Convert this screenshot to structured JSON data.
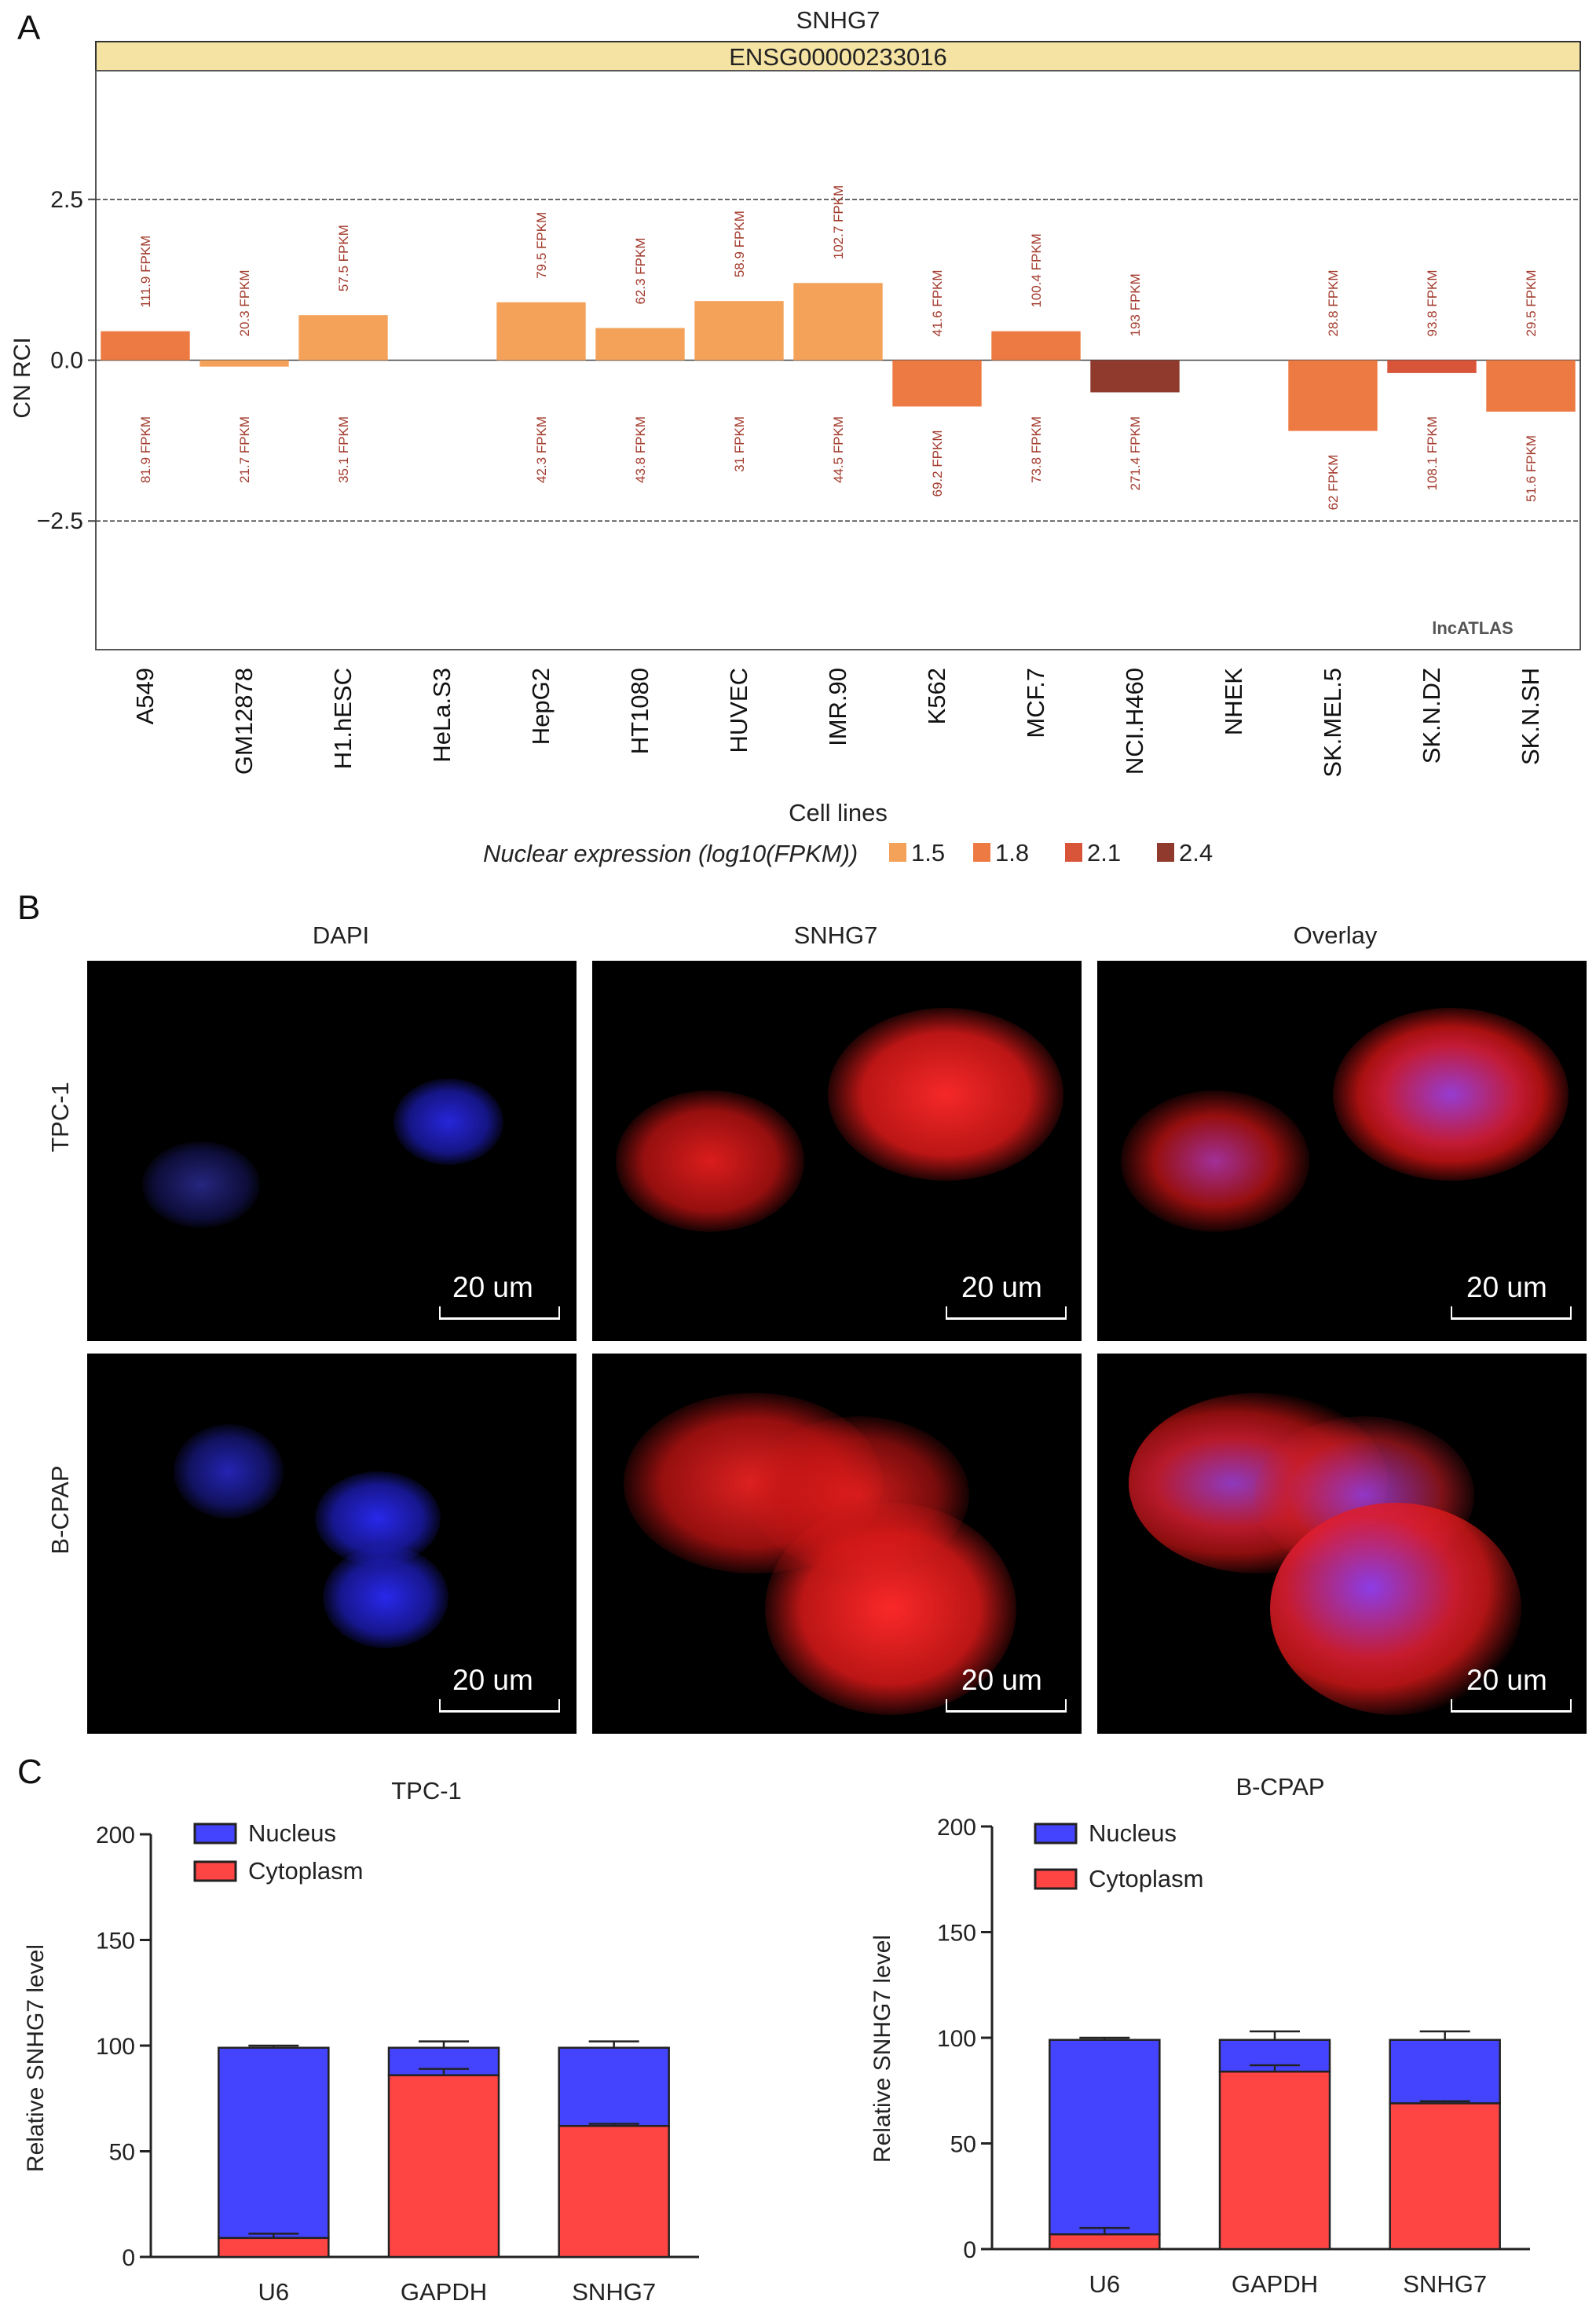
{
  "panels": {
    "a": "A",
    "b": "B",
    "c": "C"
  },
  "chart_data": [
    {
      "type": "bar",
      "title": "SNHG7",
      "subtitle": "ENSG00000233016",
      "xlabel": "Cell lines",
      "ylabel": "CN RCI",
      "watermark": "lncATLAS",
      "ylim": [
        -4.5,
        4.5
      ],
      "yticks": [
        2.5,
        0.0,
        -2.5
      ],
      "ytick_labels": [
        "2.5",
        "0.0",
        "−2.5"
      ],
      "categories": [
        "A549",
        "GM12878",
        "H1.hESC",
        "HeLa.S3",
        "HepG2",
        "HT1080",
        "HUVEC",
        "IMR.90",
        "K562",
        "MCF.7",
        "NCI.H460",
        "NHEK",
        "SK.MEL.5",
        "SK.N.DZ",
        "SK.N.SH"
      ],
      "values": [
        0.45,
        -0.1,
        0.7,
        null,
        0.9,
        0.5,
        0.92,
        1.2,
        -0.72,
        0.45,
        -0.5,
        null,
        -1.1,
        -0.2,
        -0.8
      ],
      "nuclear_log10_fpkm": [
        1.9,
        1.35,
        1.55,
        null,
        1.63,
        1.64,
        1.5,
        1.65,
        1.84,
        1.87,
        2.43,
        null,
        1.79,
        2.03,
        1.71
      ],
      "cytoplasm_labels": [
        "111.9 FPKM",
        "20.3 FPKM",
        "57.5 FPKM",
        "",
        "79.5 FPKM",
        "62.3 FPKM",
        "58.9 FPKM",
        "102.7 FPKM",
        "41.6 FPKM",
        "100.4 FPKM",
        "193 FPKM",
        "",
        "28.8 FPKM",
        "93.8 FPKM",
        "29.5 FPKM"
      ],
      "nucleus_labels": [
        "81.9 FPKM",
        "21.7 FPKM",
        "35.1 FPKM",
        "",
        "42.3 FPKM",
        "43.8 FPKM",
        "31 FPKM",
        "44.5 FPKM",
        "69.2 FPKM",
        "73.8 FPKM",
        "271.4 FPKM",
        "",
        "62 FPKM",
        "108.1 FPKM",
        "51.6 FPKM"
      ],
      "legend": {
        "title": "Nuclear expression (log10(FPKM))",
        "entries": [
          {
            "label": "1.5",
            "value": 1.5,
            "color": "#f4a25a"
          },
          {
            "label": "1.8",
            "value": 1.8,
            "color": "#ec7a42"
          },
          {
            "label": "2.1",
            "value": 2.1,
            "color": "#d9553a"
          },
          {
            "label": "2.4",
            "value": 2.4,
            "color": "#8f3a2c"
          }
        ],
        "placement": "bottom"
      },
      "grid": "dashed lines at y ticks",
      "header_color": "#f5e3a4"
    },
    {
      "type": "bar",
      "stacked": true,
      "title": "TPC-1",
      "ylabel": "Relative SNHG7 level",
      "ylim": [
        0,
        200
      ],
      "yticks": [
        0,
        50,
        100,
        150,
        200
      ],
      "categories": [
        "U6",
        "GAPDH",
        "SNHG7"
      ],
      "series": [
        {
          "name": "Cytoplasm",
          "values": [
            9,
            86,
            62
          ],
          "color": "#ff4444"
        },
        {
          "name": "Nucleus",
          "values": [
            90,
            13,
            37
          ],
          "color": "#4444ff"
        }
      ],
      "error_tops": [
        [
          11,
          89,
          63
        ],
        [
          100,
          102,
          102
        ]
      ],
      "legend_placement": "top-left"
    },
    {
      "type": "bar",
      "stacked": true,
      "title": "B-CPAP",
      "ylabel": "Relative SNHG7 level",
      "ylim": [
        0,
        200
      ],
      "yticks": [
        0,
        50,
        100,
        150,
        200
      ],
      "categories": [
        "U6",
        "GAPDH",
        "SNHG7"
      ],
      "series": [
        {
          "name": "Cytoplasm",
          "values": [
            7,
            84,
            69
          ],
          "color": "#ff4444"
        },
        {
          "name": "Nucleus",
          "values": [
            92,
            15,
            30
          ],
          "color": "#4444ff"
        }
      ],
      "error_tops": [
        [
          10,
          87,
          70
        ],
        [
          100,
          103,
          103
        ]
      ],
      "legend_placement": "top-left"
    }
  ],
  "microscopy": {
    "columns": [
      "DAPI",
      "SNHG7",
      "Overlay"
    ],
    "rows": [
      "TPC-1",
      "B-CPAP"
    ],
    "scale_bar_label": "20 um"
  }
}
